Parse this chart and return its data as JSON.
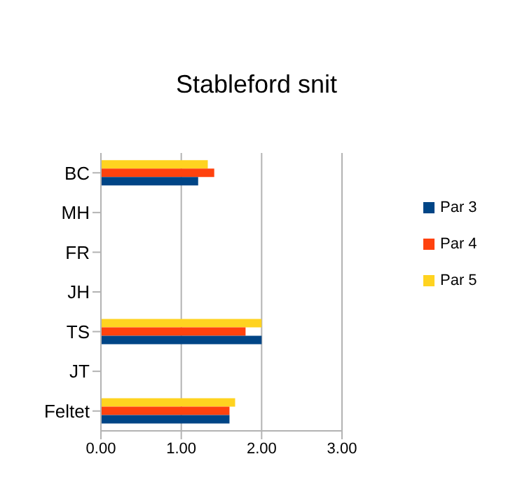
{
  "chart_data": {
    "type": "bar",
    "orientation": "horizontal",
    "title": "Stableford snit",
    "categories": [
      "BC",
      "MH",
      "FR",
      "JH",
      "TS",
      "JT",
      "Feltet"
    ],
    "series": [
      {
        "name": "Par 5",
        "color": "#ffd320",
        "values": [
          1.33,
          null,
          null,
          null,
          2.0,
          null,
          1.67
        ]
      },
      {
        "name": "Par 4",
        "color": "#ff420e",
        "values": [
          1.41,
          null,
          null,
          null,
          1.8,
          null,
          1.6
        ]
      },
      {
        "name": "Par 3",
        "color": "#004586",
        "values": [
          1.21,
          null,
          null,
          null,
          2.0,
          null,
          1.6
        ]
      }
    ],
    "xlim": [
      0,
      3
    ],
    "xticks": [
      {
        "value": 0,
        "label": "0.00"
      },
      {
        "value": 1,
        "label": "1.00"
      },
      {
        "value": 2,
        "label": "2.00"
      },
      {
        "value": 3,
        "label": "3.00"
      }
    ],
    "grid": "x",
    "legend": "right"
  }
}
